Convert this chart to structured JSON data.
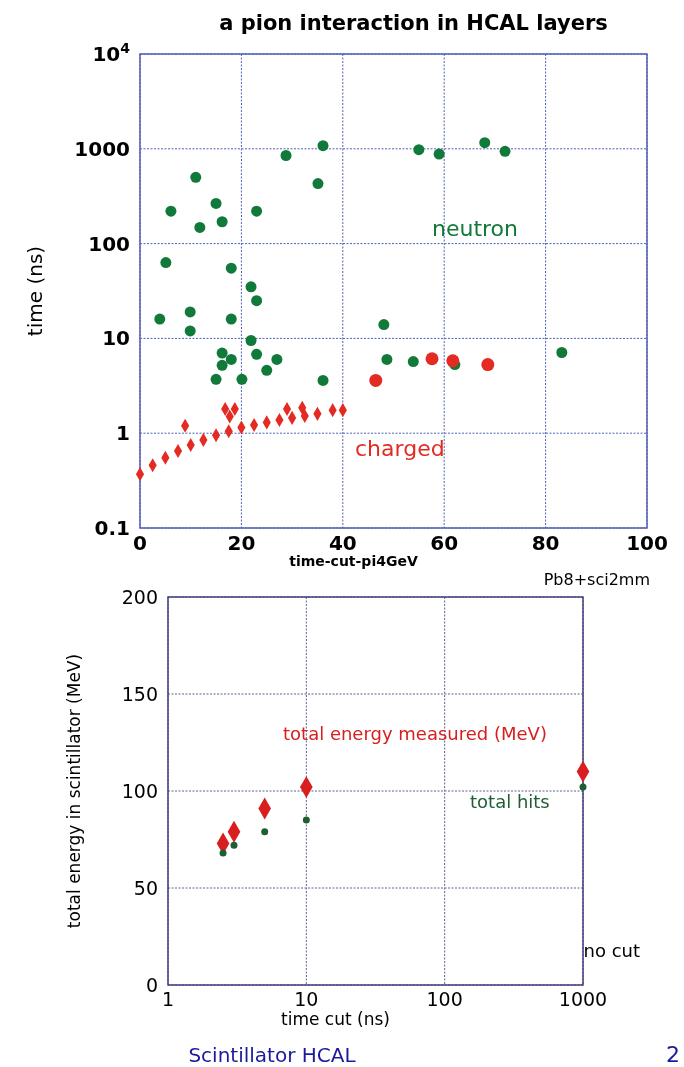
{
  "chart_data": [
    {
      "type": "scatter",
      "title": "a pion interaction in HCAL layers",
      "xlabel": "time-cut-pi4GeV",
      "ylabel": "time (ns)",
      "log": "y",
      "grid": true,
      "xlim": [
        0,
        100
      ],
      "xticks": [
        0,
        20,
        40,
        60,
        80,
        100
      ],
      "ylim": [
        0.1,
        10000
      ],
      "yticks": [
        0.1,
        1,
        10,
        100,
        1000,
        {
          "value": 10000,
          "label": "10$^{4}$"
        }
      ],
      "series": [
        {
          "name": "neutron",
          "color": "#117a3a",
          "marker": "circle",
          "x": [
            3.9,
            5.1,
            6.1,
            9.9,
            9.9,
            11,
            11.8,
            15,
            16.2,
            18,
            18,
            21.9,
            23,
            23,
            28.8,
            35.1,
            36.1,
            21.9,
            16.2,
            16.2,
            18,
            23,
            27,
            25,
            15,
            20.1,
            36.1,
            48.1,
            48.7,
            55,
            59,
            68,
            72,
            53.9,
            62.1,
            83.2
          ],
          "values": [
            16,
            63,
            220,
            19,
            12,
            500,
            148,
            265,
            170,
            55,
            16,
            35,
            25,
            220,
            850,
            430,
            1080,
            9.5,
            7,
            5.2,
            6,
            6.8,
            6,
            4.6,
            3.7,
            3.7,
            3.6,
            14,
            6,
            980,
            880,
            1160,
            940,
            5.7,
            5.3,
            7.1
          ]
        },
        {
          "name": "charged",
          "color": "#e32b24",
          "marker": "diamond",
          "x": [
            0,
            2.5,
            5,
            7.5,
            10,
            12.5,
            15,
            17.5,
            20,
            22.5,
            25,
            27.5,
            30,
            32.5,
            35,
            8.9,
            16.8,
            18.7,
            17.7,
            29,
            32,
            38,
            40
          ],
          "values": [
            0.37,
            0.46,
            0.55,
            0.65,
            0.75,
            0.85,
            0.95,
            1.05,
            1.15,
            1.22,
            1.3,
            1.38,
            1.45,
            1.52,
            1.6,
            1.2,
            1.8,
            1.8,
            1.5,
            1.8,
            1.85,
            1.75,
            1.75
          ]
        },
        {
          "color": "#e32b24",
          "marker": "circle",
          "x": [
            46.5,
            57.6,
            61.7,
            68.6
          ],
          "values": [
            3.6,
            6.1,
            5.8,
            5.3
          ]
        }
      ]
    },
    {
      "type": "scatter",
      "xlabel": "time cut (ns)",
      "ylabel": "total energy in scintillator (MeV)",
      "log": "x",
      "grid": true,
      "xlim": [
        1,
        1000
      ],
      "xticks": [
        1,
        10,
        100,
        1000
      ],
      "ylim": [
        0,
        200
      ],
      "yticks": [
        0,
        50,
        100,
        150,
        200
      ],
      "annotations": [
        "Pb8+sci2mm",
        "no cut",
        "Scintillator HCAL",
        "2"
      ],
      "series": [
        {
          "name": "total energy measured (MeV)",
          "color": "#d81e1e",
          "marker": "diamond",
          "x": [
            2.5,
            3,
            5,
            10,
            1000
          ],
          "values": [
            73,
            79,
            91,
            102,
            110
          ]
        },
        {
          "name": "total hits",
          "color": "#1e5e32",
          "marker": "circle",
          "x": [
            2.5,
            3,
            5,
            10,
            1000
          ],
          "values": [
            68,
            72,
            79,
            85,
            102
          ]
        }
      ]
    }
  ]
}
